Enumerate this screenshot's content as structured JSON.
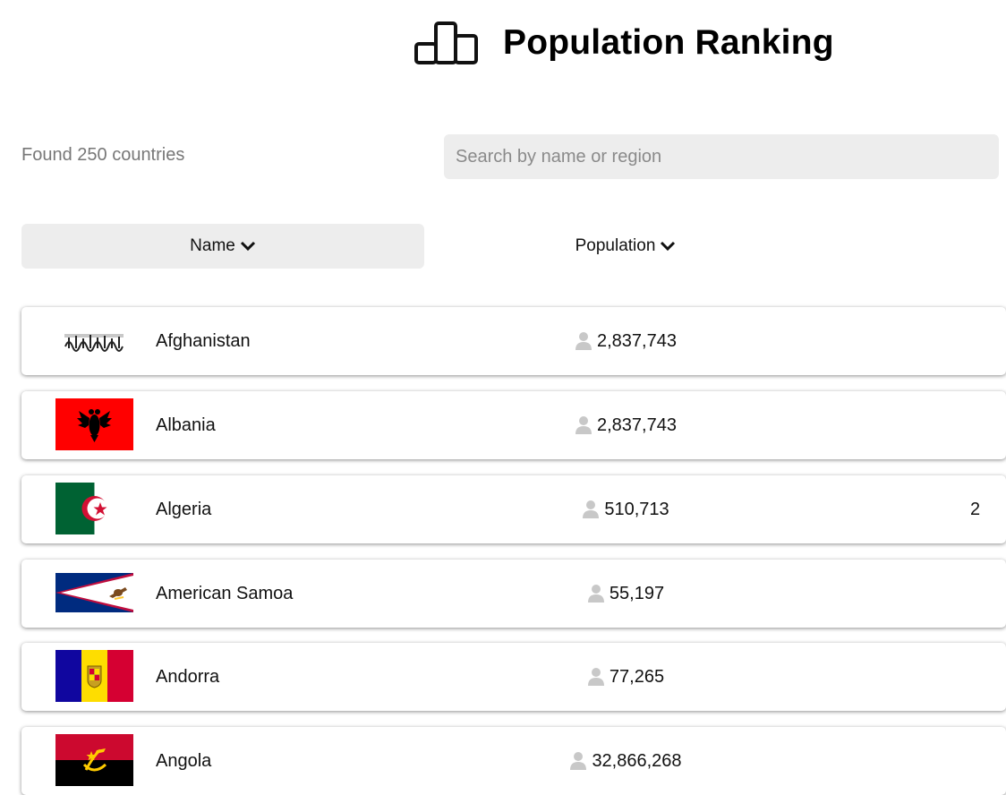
{
  "header": {
    "title": "Population Ranking",
    "icon": "podium-icon"
  },
  "summary": {
    "found_text": "Found 250 countries"
  },
  "search": {
    "placeholder": "Search by name or region",
    "value": ""
  },
  "sort": {
    "name_label": "Name",
    "population_label": "Population"
  },
  "countries": [
    {
      "name": "Afghanistan",
      "population": "2,837,743",
      "flag": "afghanistan-flag",
      "extra": ""
    },
    {
      "name": "Albania",
      "population": "2,837,743",
      "flag": "albania-flag",
      "extra": ""
    },
    {
      "name": "Algeria",
      "population": "510,713",
      "flag": "algeria-flag",
      "extra": "2"
    },
    {
      "name": "American Samoa",
      "population": "55,197",
      "flag": "american-samoa-flag",
      "extra": ""
    },
    {
      "name": "Andorra",
      "population": "77,265",
      "flag": "andorra-flag",
      "extra": ""
    },
    {
      "name": "Angola",
      "population": "32,866,268",
      "flag": "angola-flag",
      "extra": ""
    }
  ],
  "colors": {
    "search_bg": "#ededed",
    "muted_text": "#777777",
    "icon_gray": "#c8c8c8"
  }
}
